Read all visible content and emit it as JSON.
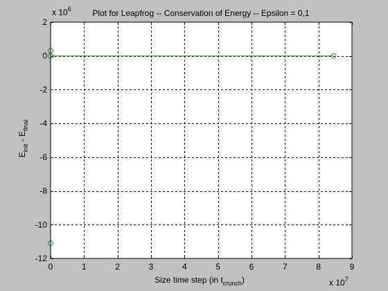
{
  "chart_data": {
    "type": "line",
    "title": "Plot for Leapfrog -- Conservation of Energy -- Epsilon = 0,1",
    "xlabel": {
      "main": "Size time step (in t",
      "sub": "crunch",
      "close": ")"
    },
    "ylabel": {
      "p1": "E",
      "sub1": "init",
      "p2": " - E",
      "sub2": "final"
    },
    "x_exponent": {
      "base": "x 10",
      "power": "7"
    },
    "y_exponent": {
      "base": "x 10",
      "power": "6"
    },
    "xlim": [
      0,
      9
    ],
    "ylim": [
      -12,
      2
    ],
    "xticks": [
      0,
      1,
      2,
      3,
      4,
      5,
      6,
      7,
      8,
      9
    ],
    "yticks": [
      2,
      0,
      -2,
      -4,
      -6,
      -8,
      -10,
      -12
    ],
    "grid": true,
    "grid_style": "dashed",
    "series": [
      {
        "marker": "circle",
        "color": "#2e8b2e",
        "points": [
          {
            "x": 0,
            "y": 0.3
          },
          {
            "x": 0,
            "y": 0.0
          },
          {
            "x": 0,
            "y": -11.1
          },
          {
            "x": 8.45,
            "y": 0.0
          }
        ]
      }
    ],
    "line_segments": [
      {
        "from": [
          0,
          0.3
        ],
        "to": [
          0,
          -11.1
        ]
      },
      {
        "from": [
          0,
          0.0
        ],
        "to": [
          8.45,
          0.0
        ]
      }
    ]
  }
}
